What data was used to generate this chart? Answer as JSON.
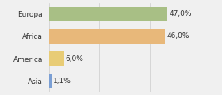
{
  "categories": [
    "Asia",
    "America",
    "Africa",
    "Europa"
  ],
  "values": [
    1.1,
    6.0,
    46.0,
    47.0
  ],
  "bar_colors": [
    "#7b9fd4",
    "#e8cc76",
    "#e8b87a",
    "#a8bf85"
  ],
  "labels": [
    "1,1%",
    "6,0%",
    "46,0%",
    "47,0%"
  ],
  "xlim": [
    0,
    58
  ],
  "background_color": "#f0f0f0",
  "bar_height": 0.62,
  "label_fontsize": 6.5,
  "tick_fontsize": 6.5,
  "figsize": [
    2.8,
    1.2
  ],
  "dpi": 100
}
